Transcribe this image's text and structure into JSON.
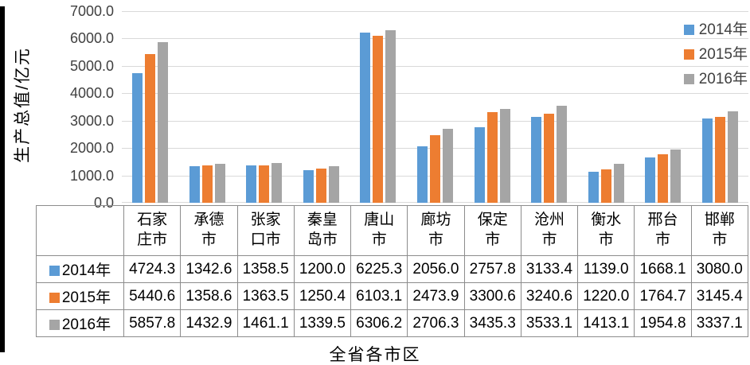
{
  "chart_data": {
    "type": "bar",
    "title": "",
    "xlabel": "全省各市区",
    "ylabel": "生产总值/亿元",
    "ylim": [
      0,
      7000
    ],
    "ytick_step": 1000,
    "yticks": [
      "7000.0",
      "6000.0",
      "5000.0",
      "4000.0",
      "3000.0",
      "2000.0",
      "1000.0",
      "0.0"
    ],
    "grid": true,
    "legend_position": "top-right",
    "categories": [
      "石家庄市",
      "承德市",
      "张家口市",
      "秦皇岛市",
      "唐山市",
      "廊坊市",
      "保定市",
      "沧州市",
      "衡水市",
      "邢台市",
      "邯郸市"
    ],
    "categories_wrapped": [
      "石家\n庄市",
      "承德\n市",
      "张家\n口市",
      "秦皇\n岛市",
      "唐山\n市",
      "廊坊\n市",
      "保定\n市",
      "沧州\n市",
      "衡水\n市",
      "邢台\n市",
      "邯郸\n市"
    ],
    "series": [
      {
        "name": "2014年",
        "color": "#5B9BD5",
        "values": [
          4724.3,
          1342.6,
          1358.5,
          1200.0,
          6225.3,
          2056.0,
          2757.8,
          3133.4,
          1139.0,
          1668.1,
          3080.0
        ]
      },
      {
        "name": "2015年",
        "color": "#ED7D31",
        "values": [
          5440.6,
          1358.6,
          1363.5,
          1250.4,
          6103.1,
          2473.9,
          3300.6,
          3240.6,
          1220.0,
          1764.7,
          3145.4
        ]
      },
      {
        "name": "2016年",
        "color": "#A5A5A5",
        "values": [
          5857.8,
          1432.9,
          1461.1,
          1339.5,
          6306.2,
          2706.3,
          3435.3,
          3533.1,
          1413.1,
          1954.8,
          3337.1
        ]
      }
    ],
    "value_decimals": 1
  },
  "colors": {
    "series_blue": "#5B9BD5",
    "series_orange": "#ED7D31",
    "series_gray": "#A5A5A5",
    "gridline": "#D9D9D9",
    "table_border": "#8C8C8C",
    "tick_text": "#404040"
  }
}
